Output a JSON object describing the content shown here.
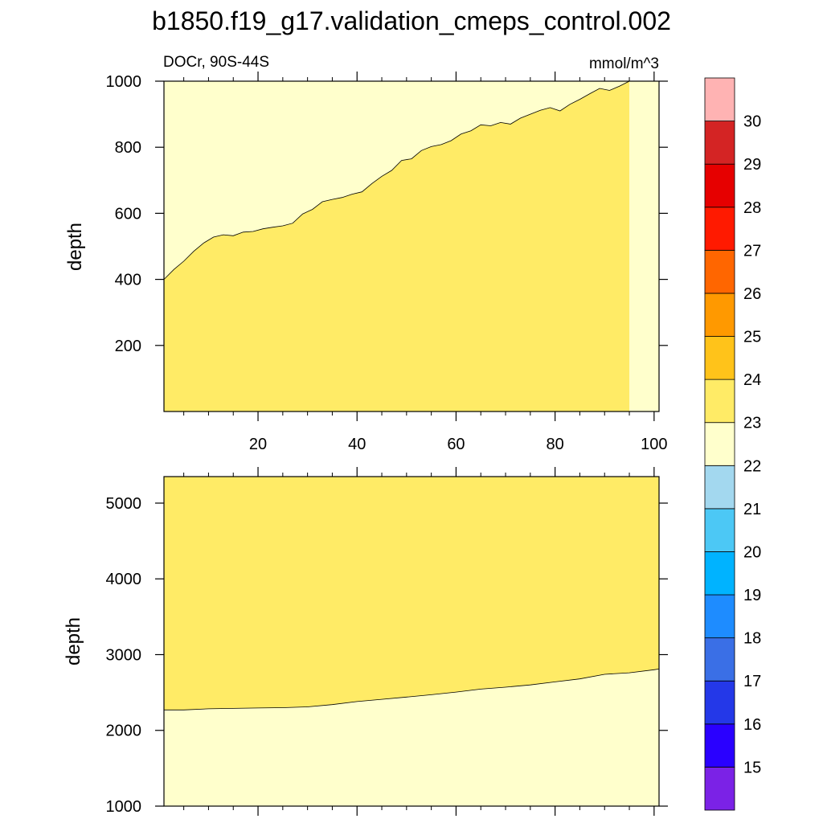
{
  "title": "b1850.f19_g17.validation_cmeps_control.002",
  "subtitle_left": "DOCr, 90S-44S",
  "subtitle_right": "mmol/m^3",
  "colors": {
    "upper_level": "#ffeb66",
    "lower_level": "#ffffcc",
    "contour_line": "#000000"
  },
  "chart_data": [
    {
      "type": "contour",
      "panel": "upper",
      "ylabel": "depth",
      "xlim": [
        1,
        101
      ],
      "ylim": [
        1000,
        0
      ],
      "xticks": [
        "20",
        "40",
        "60",
        "80",
        "100"
      ],
      "xtick_values": [
        20,
        40,
        60,
        80,
        100
      ],
      "yticks": [
        "200",
        "400",
        "600",
        "800",
        "1000"
      ],
      "ytick_values": [
        200,
        400,
        600,
        800,
        1000
      ],
      "regions": [
        {
          "name": "above contour",
          "range": "22-23",
          "color": "#ffffcc"
        },
        {
          "name": "below contour",
          "range": "23-24",
          "color": "#ffeb66"
        }
      ],
      "contour_23": {
        "x": [
          1,
          3,
          5,
          7,
          9,
          11,
          13,
          15,
          17,
          19,
          21,
          23,
          25,
          27,
          29,
          31,
          33,
          35,
          37,
          39,
          41,
          43,
          45,
          47,
          49,
          51,
          53,
          55,
          57,
          59,
          61,
          63,
          65,
          67,
          69,
          71,
          73,
          75,
          77,
          79,
          81,
          83,
          85,
          87,
          89,
          91,
          93,
          95
        ],
        "depth": [
          400,
          430,
          455,
          485,
          510,
          528,
          535,
          532,
          543,
          545,
          553,
          558,
          562,
          570,
          598,
          612,
          635,
          642,
          648,
          658,
          665,
          690,
          712,
          730,
          760,
          765,
          790,
          802,
          808,
          820,
          840,
          850,
          868,
          865,
          875,
          870,
          888,
          900,
          912,
          920,
          910,
          930,
          945,
          962,
          978,
          972,
          985,
          1000
        ]
      }
    },
    {
      "type": "contour",
      "panel": "lower",
      "ylabel": "depth",
      "xlim": [
        1,
        101
      ],
      "ylim": [
        5350,
        1000
      ],
      "yticks": [
        "1000",
        "2000",
        "3000",
        "4000",
        "5000"
      ],
      "ytick_values": [
        1000,
        2000,
        3000,
        4000,
        5000
      ],
      "regions": [
        {
          "name": "above contour",
          "range": "23-24",
          "color": "#ffeb66"
        },
        {
          "name": "below contour",
          "range": "22-23",
          "color": "#ffffcc"
        }
      ],
      "contour_23": {
        "x": [
          1,
          5,
          10,
          15,
          20,
          25,
          30,
          35,
          40,
          45,
          50,
          55,
          60,
          65,
          70,
          75,
          80,
          85,
          90,
          95,
          100,
          101
        ],
        "depth": [
          2270,
          2270,
          2285,
          2290,
          2295,
          2300,
          2310,
          2340,
          2380,
          2410,
          2440,
          2470,
          2505,
          2545,
          2570,
          2600,
          2640,
          2680,
          2740,
          2760,
          2800,
          2810
        ]
      }
    }
  ],
  "colorbar": {
    "labels": [
      "15",
      "16",
      "17",
      "18",
      "19",
      "20",
      "21",
      "22",
      "23",
      "24",
      "25",
      "26",
      "27",
      "28",
      "29",
      "30"
    ],
    "colors": [
      "#7b22e6",
      "#2a00ff",
      "#2438e8",
      "#3a6fe6",
      "#1e8cff",
      "#00b3ff",
      "#4cc8f5",
      "#a3d8ef",
      "#ffffcc",
      "#ffeb66",
      "#ffc31a",
      "#ff9900",
      "#ff6600",
      "#ff1a00",
      "#e60000",
      "#d42424",
      "#ffb3b3"
    ]
  }
}
